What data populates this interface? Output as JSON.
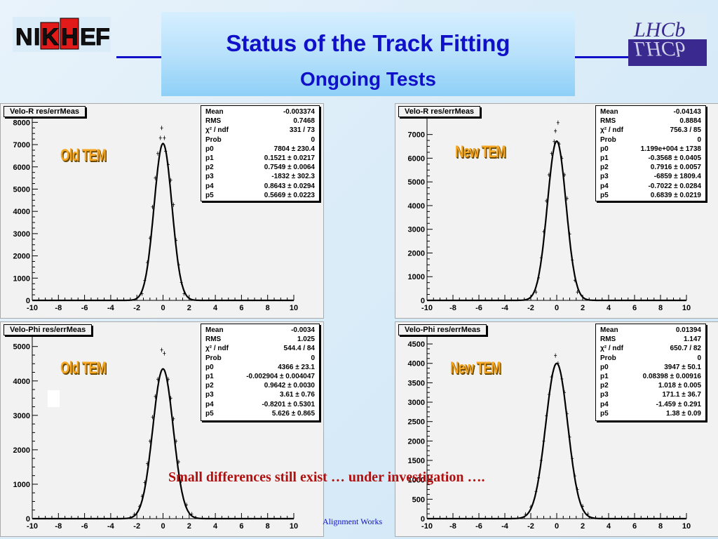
{
  "slide": {
    "title": "Status of the Track Fitting",
    "subtitle": "Ongoing Tests",
    "note": "Small differences still exist … under investigation ….",
    "footer": "Alignment Works",
    "logo_left_letters": [
      "N",
      "I",
      "K",
      "H",
      "E",
      "F"
    ],
    "logo_right_text": "LHCb"
  },
  "chart_data": [
    {
      "type": "line",
      "title": "Velo-R res/errMeas",
      "tag": "Old TEM",
      "xlim": [
        -10,
        10
      ],
      "ylim": [
        0,
        8200
      ],
      "xticks": [
        -10,
        -8,
        -6,
        -4,
        -2,
        0,
        2,
        4,
        6,
        8,
        10
      ],
      "yticks": [
        0,
        1000,
        2000,
        3000,
        4000,
        5000,
        6000,
        7000,
        8000
      ],
      "fit": {
        "amplitude": 7050,
        "mean": 0.0,
        "sigma": 0.68
      },
      "points": [
        [
          -1.6,
          300
        ],
        [
          -1.4,
          900
        ],
        [
          -1.2,
          1700
        ],
        [
          -1.0,
          2800
        ],
        [
          -0.8,
          4200
        ],
        [
          -0.6,
          5500
        ],
        [
          -0.4,
          6600
        ],
        [
          -0.2,
          7300
        ],
        [
          -0.1,
          7750
        ],
        [
          0.1,
          7300
        ],
        [
          0.2,
          6700
        ],
        [
          0.4,
          6100
        ],
        [
          0.6,
          5400
        ],
        [
          0.8,
          4300
        ],
        [
          1.0,
          2700
        ],
        [
          1.2,
          1600
        ],
        [
          1.4,
          800
        ],
        [
          1.6,
          300
        ]
      ],
      "stats": [
        {
          "k": "Mean",
          "v": "-0.003374"
        },
        {
          "k": "RMS",
          "v": "0.7468"
        },
        {
          "k": "χ² / ndf",
          "v": "331 / 73"
        },
        {
          "k": "Prob",
          "v": "0"
        },
        {
          "k": "p0",
          "v": "7804 ± 230.4"
        },
        {
          "k": "p1",
          "v": "0.1521 ± 0.0217"
        },
        {
          "k": "p2",
          "v": "0.7549 ± 0.0064"
        },
        {
          "k": "p3",
          "v": "-1832 ± 302.3"
        },
        {
          "k": "p4",
          "v": "0.8643 ± 0.0294"
        },
        {
          "k": "p5",
          "v": "0.5669 ± 0.0223"
        }
      ]
    },
    {
      "type": "line",
      "title": "Velo-R res/errMeas",
      "tag": "New TEM",
      "xlim": [
        -10,
        10
      ],
      "ylim": [
        0,
        7700
      ],
      "xticks": [
        -10,
        -8,
        -6,
        -4,
        -2,
        0,
        2,
        4,
        6,
        8,
        10
      ],
      "yticks": [
        0,
        1000,
        2000,
        3000,
        4000,
        5000,
        6000,
        7000
      ],
      "fit": {
        "amplitude": 6720,
        "mean": 0.0,
        "sigma": 0.72
      },
      "points": [
        [
          -1.6,
          350
        ],
        [
          -1.4,
          950
        ],
        [
          -1.2,
          1800
        ],
        [
          -1.0,
          2900
        ],
        [
          -0.8,
          4200
        ],
        [
          -0.6,
          5300
        ],
        [
          -0.4,
          6200
        ],
        [
          -0.2,
          6700
        ],
        [
          -0.1,
          7150
        ],
        [
          0.1,
          7500
        ],
        [
          0.2,
          6600
        ],
        [
          0.4,
          6000
        ],
        [
          0.6,
          5300
        ],
        [
          0.8,
          4300
        ],
        [
          1.0,
          2800
        ],
        [
          1.2,
          1700
        ],
        [
          1.4,
          850
        ],
        [
          1.6,
          350
        ]
      ],
      "stats": [
        {
          "k": "Mean",
          "v": "-0.04143"
        },
        {
          "k": "RMS",
          "v": "0.8884"
        },
        {
          "k": "χ² / ndf",
          "v": "756.3 / 85"
        },
        {
          "k": "Prob",
          "v": "0"
        },
        {
          "k": "p0",
          "v": "1.199e+004 ± 1738"
        },
        {
          "k": "p1",
          "v": "-0.3568 ± 0.0405"
        },
        {
          "k": "p2",
          "v": "0.7916 ± 0.0057"
        },
        {
          "k": "p3",
          "v": "-6859 ± 1809.4"
        },
        {
          "k": "p4",
          "v": "-0.7022 ± 0.0284"
        },
        {
          "k": "p5",
          "v": "0.6839 ± 0.0219"
        }
      ]
    },
    {
      "type": "line",
      "title": "Velo-Phi res/errMeas",
      "tag": "Old TEM",
      "xlim": [
        -10,
        10
      ],
      "ylim": [
        0,
        5300
      ],
      "xticks": [
        -10,
        -8,
        -6,
        -4,
        -2,
        0,
        2,
        4,
        6,
        8,
        10
      ],
      "yticks": [
        0,
        1000,
        2000,
        3000,
        4000,
        5000
      ],
      "fit": {
        "amplitude": 4350,
        "mean": 0.0,
        "sigma": 0.78
      },
      "points": [
        [
          -2.2,
          120
        ],
        [
          -1.8,
          350
        ],
        [
          -1.6,
          650
        ],
        [
          -1.4,
          1050
        ],
        [
          -1.2,
          1600
        ],
        [
          -1.0,
          2250
        ],
        [
          -0.8,
          2950
        ],
        [
          -0.6,
          3550
        ],
        [
          -0.4,
          4050
        ],
        [
          -0.1,
          4900
        ],
        [
          0.1,
          4800
        ],
        [
          0.4,
          4050
        ],
        [
          0.6,
          3500
        ],
        [
          0.8,
          2900
        ],
        [
          1.0,
          2250
        ],
        [
          1.2,
          1650
        ],
        [
          1.4,
          1100
        ],
        [
          1.8,
          400
        ],
        [
          2.2,
          130
        ]
      ],
      "stats": [
        {
          "k": "Mean",
          "v": "-0.0034"
        },
        {
          "k": "RMS",
          "v": "1.025"
        },
        {
          "k": "χ² / ndf",
          "v": "544.4 / 84"
        },
        {
          "k": "Prob",
          "v": "0"
        },
        {
          "k": "p0",
          "v": "4366 ± 23.1"
        },
        {
          "k": "p1",
          "v": "-0.002904 ± 0.004047"
        },
        {
          "k": "p2",
          "v": "0.9642 ± 0.0030"
        },
        {
          "k": "p3",
          "v": "3.61 ± 0.76"
        },
        {
          "k": "p4",
          "v": "-0.8201 ± 0.5301"
        },
        {
          "k": "p5",
          "v": "5.626 ± 0.865"
        }
      ]
    },
    {
      "type": "line",
      "title": "Velo-Phi res/errMeas",
      "tag": "New TEM",
      "xlim": [
        -10,
        10
      ],
      "ylim": [
        0,
        4700
      ],
      "xticks": [
        -10,
        -8,
        -6,
        -4,
        -2,
        0,
        2,
        4,
        6,
        8,
        10
      ],
      "yticks": [
        0,
        500,
        1000,
        1500,
        2000,
        2500,
        3000,
        3500,
        4000,
        4500
      ],
      "fit": {
        "amplitude": 4000,
        "mean": 0.0,
        "sigma": 0.85
      },
      "points": [
        [
          -2.4,
          110
        ],
        [
          -2.0,
          300
        ],
        [
          -1.6,
          700
        ],
        [
          -1.4,
          1050
        ],
        [
          -1.2,
          1500
        ],
        [
          -1.0,
          2000
        ],
        [
          -0.8,
          2650
        ],
        [
          -0.6,
          3200
        ],
        [
          -0.4,
          3650
        ],
        [
          -0.1,
          4200
        ],
        [
          0.1,
          4000
        ],
        [
          0.4,
          3600
        ],
        [
          0.6,
          3250
        ],
        [
          0.8,
          2700
        ],
        [
          1.0,
          2100
        ],
        [
          1.2,
          1550
        ],
        [
          1.4,
          1100
        ],
        [
          1.6,
          750
        ],
        [
          2.0,
          320
        ],
        [
          2.4,
          120
        ]
      ],
      "stats": [
        {
          "k": "Mean",
          "v": "0.01394"
        },
        {
          "k": "RMS",
          "v": "1.147"
        },
        {
          "k": "χ² / ndf",
          "v": "650.7 / 82"
        },
        {
          "k": "Prob",
          "v": "0"
        },
        {
          "k": "p0",
          "v": "3947 ± 50.1"
        },
        {
          "k": "p1",
          "v": "0.08398 ± 0.00916"
        },
        {
          "k": "p2",
          "v": "1.018 ± 0.005"
        },
        {
          "k": "p3",
          "v": "171.1 ± 36.7"
        },
        {
          "k": "p4",
          "v": "-1.459 ± 0.291"
        },
        {
          "k": "p5",
          "v": "1.38 ± 0.09"
        }
      ]
    }
  ]
}
